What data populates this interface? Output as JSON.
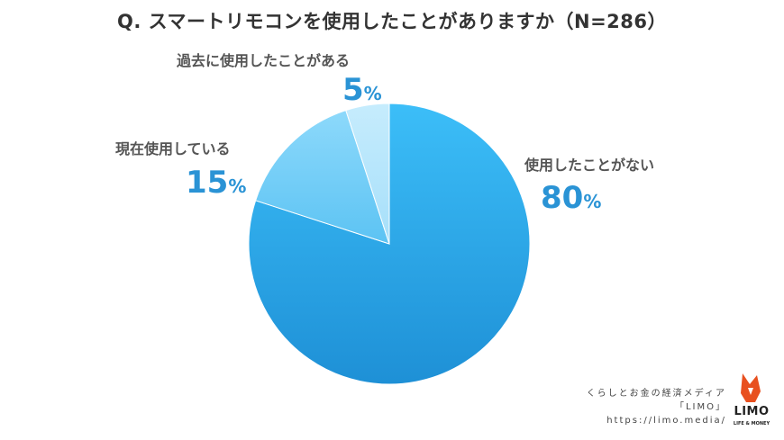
{
  "chart_data": {
    "type": "pie",
    "title": "Q. スマートリモコンを使用したことがありますか（N=286）",
    "slices": [
      {
        "label": "使用したことがない",
        "value": 80,
        "color": "#2ba6e8"
      },
      {
        "label": "現在使用している",
        "value": 15,
        "color": "#6dccf7"
      },
      {
        "label": "過去に使用したことがある",
        "value": 5,
        "color": "#b3e5fb"
      }
    ],
    "unit": "%"
  },
  "footer": {
    "line1": "くらしとお金の経済メディア",
    "line2": "「LIMO」",
    "line3": "https://limo.media/"
  },
  "logo": {
    "name": "fox-logo-icon",
    "text": "LIMO",
    "sub": "LIFE & MONEY"
  }
}
